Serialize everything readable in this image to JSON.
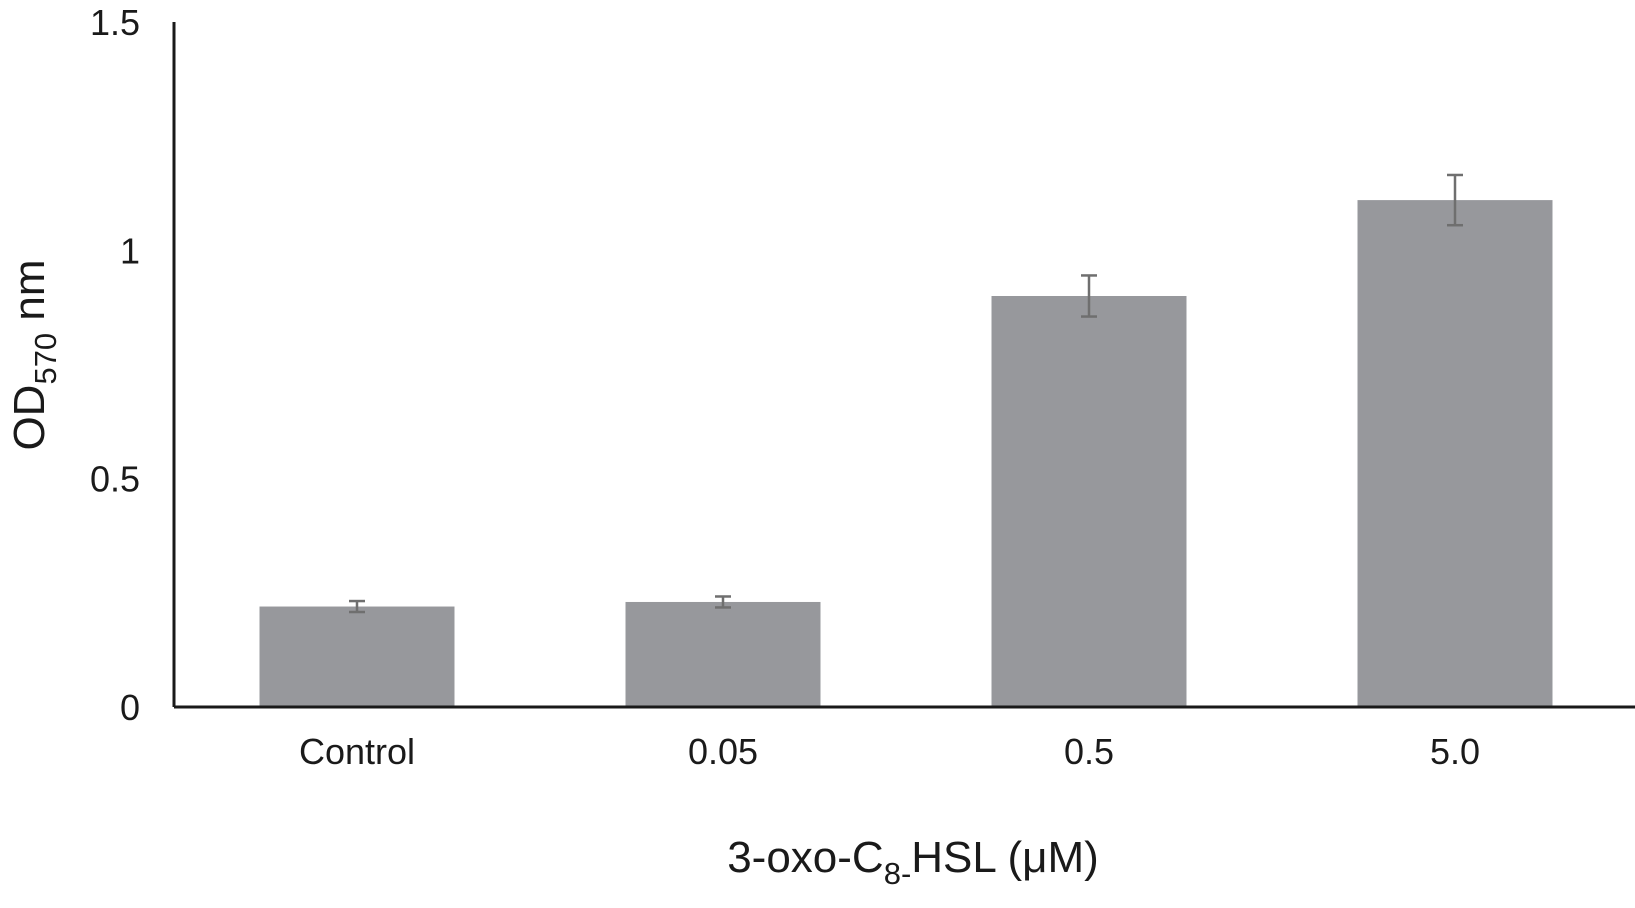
{
  "chart_data": {
    "type": "bar",
    "categories": [
      "Control",
      "0.05",
      "0.5",
      "5.0"
    ],
    "values": [
      0.22,
      0.23,
      0.9,
      1.11
    ],
    "errors": [
      0.012,
      0.012,
      0.045,
      0.055
    ],
    "xlabel": {
      "main": "3-oxo-C",
      "sub": "8-",
      "rest": "HSL (μM)"
    },
    "ylabel": {
      "main": "OD",
      "sub": "570",
      "rest": " nm"
    },
    "ylim": [
      0,
      1.5
    ],
    "yticks": [
      "0",
      "0.5",
      "1",
      "1.5"
    ],
    "ytick_values": [
      0,
      0.5,
      1,
      1.5
    ],
    "bar_color": "#97989c",
    "error_color": "#6f6f6f",
    "axis_color": "#1a1a1a",
    "grid": false
  }
}
